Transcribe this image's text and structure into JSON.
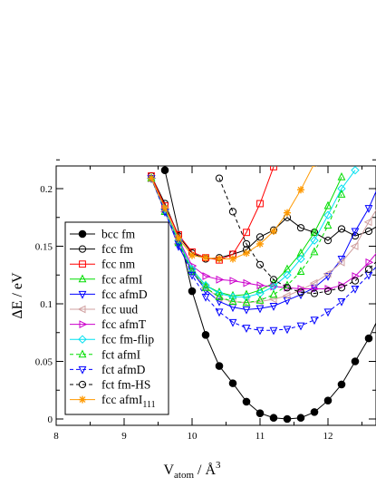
{
  "chart_data": {
    "type": "line",
    "xlabel": {
      "main": "V",
      "sub": "atom",
      "mid": " / Å",
      "sup": "3"
    },
    "ylabel": "ΔE / eV",
    "xlim": [
      8,
      12.8
    ],
    "ylim": [
      -0.015,
      0.225
    ],
    "xticks": [
      "8",
      "9",
      "10",
      "11",
      "12"
    ],
    "yticks": [
      "0",
      "0.05",
      "0.1",
      "0.15",
      "0.2"
    ],
    "legend_position": "lower-left",
    "series": [
      {
        "name": "bcc fm",
        "color": "#000000",
        "marker": "circle-filled",
        "dash": "solid",
        "x": [
          9.6,
          10.0,
          10.2,
          10.4,
          10.6,
          10.8,
          11.0,
          11.2,
          11.4,
          11.6,
          11.8,
          12.0,
          12.2,
          12.4,
          12.6,
          12.8
        ],
        "y": [
          0.216,
          0.111,
          0.073,
          0.046,
          0.031,
          0.015,
          0.005,
          0.001,
          0.0,
          0.001,
          0.006,
          0.016,
          0.03,
          0.05,
          0.07,
          0.095
        ]
      },
      {
        "name": "fcc fm",
        "color": "#000000",
        "marker": "circle-open",
        "dash": "solid",
        "x": [
          9.4,
          9.6,
          9.8,
          10.0,
          10.2,
          10.4,
          10.6,
          10.8,
          11.0,
          11.2,
          11.4,
          11.6,
          11.8,
          12.0,
          12.2,
          12.4,
          12.6,
          12.8
        ],
        "y": [
          0.211,
          0.187,
          0.159,
          0.144,
          0.139,
          0.14,
          0.143,
          0.147,
          0.158,
          0.164,
          0.175,
          0.166,
          0.162,
          0.155,
          0.165,
          0.159,
          0.163,
          0.17
        ]
      },
      {
        "name": "fcc nm",
        "color": "#ff0000",
        "marker": "square-open",
        "dash": "solid",
        "x": [
          9.4,
          9.6,
          9.8,
          10.0,
          10.2,
          10.4,
          10.6,
          10.8,
          11.0,
          11.2
        ],
        "y": [
          0.211,
          0.185,
          0.16,
          0.145,
          0.14,
          0.138,
          0.143,
          0.162,
          0.187,
          0.219
        ]
      },
      {
        "name": "fcc afmI",
        "subscript": "",
        "color": "#00dd00",
        "marker": "triangle-up-open",
        "dash": "solid",
        "x": [
          9.4,
          9.6,
          9.8,
          10.0,
          10.2,
          10.4,
          10.6,
          10.8,
          11.0,
          11.2,
          11.4,
          11.6,
          11.8,
          12.0,
          12.2
        ],
        "y": [
          0.209,
          0.18,
          0.154,
          0.13,
          0.116,
          0.11,
          0.107,
          0.108,
          0.112,
          0.118,
          0.13,
          0.144,
          0.162,
          0.185,
          0.21
        ]
      },
      {
        "name": "fcc afmD",
        "color": "#0000ff",
        "marker": "triangle-down-open",
        "dash": "solid",
        "x": [
          9.4,
          9.6,
          9.8,
          10.0,
          10.2,
          10.4,
          10.6,
          10.8,
          11.0,
          11.2,
          11.4,
          11.6,
          11.8,
          12.0,
          12.2,
          12.4,
          12.6,
          12.8
        ],
        "y": [
          0.209,
          0.18,
          0.15,
          0.128,
          0.112,
          0.102,
          0.097,
          0.095,
          0.096,
          0.098,
          0.103,
          0.108,
          0.114,
          0.124,
          0.139,
          0.163,
          0.183,
          0.21
        ]
      },
      {
        "name": "fcc uud",
        "color": "#d0a0a0",
        "marker": "triangle-left-open",
        "dash": "solid",
        "x": [
          9.4,
          9.6,
          9.8,
          10.0,
          10.2,
          10.4,
          10.6,
          10.8,
          11.0,
          11.2,
          11.4,
          11.6,
          11.8,
          12.0,
          12.2,
          12.4,
          12.6,
          12.8
        ],
        "y": [
          0.209,
          0.18,
          0.152,
          0.129,
          0.114,
          0.105,
          0.102,
          0.101,
          0.102,
          0.104,
          0.107,
          0.112,
          0.118,
          0.126,
          0.136,
          0.15,
          0.171,
          0.19
        ]
      },
      {
        "name": "fcc afmT",
        "color": "#cc00cc",
        "marker": "triangle-right-open",
        "dash": "solid",
        "x": [
          9.4,
          9.6,
          9.8,
          10.0,
          10.2,
          10.4,
          10.6,
          10.8,
          11.0,
          11.2,
          11.4,
          11.6,
          11.8,
          12.0,
          12.2,
          12.4,
          12.6,
          12.8
        ],
        "y": [
          0.209,
          0.182,
          0.156,
          0.133,
          0.124,
          0.121,
          0.12,
          0.118,
          0.116,
          0.115,
          0.114,
          0.113,
          0.113,
          0.113,
          0.116,
          0.124,
          0.136,
          0.15
        ]
      },
      {
        "name": "fcc fm-flip",
        "color": "#00e0f0",
        "marker": "diamond-open",
        "dash": "solid",
        "x": [
          9.4,
          9.6,
          9.8,
          10.0,
          10.2,
          10.4,
          10.6,
          10.8,
          11.0,
          11.2,
          11.4,
          11.6,
          11.8,
          12.0,
          12.2,
          12.4
        ],
        "y": [
          0.209,
          0.182,
          0.155,
          0.13,
          0.116,
          0.109,
          0.106,
          0.106,
          0.109,
          0.115,
          0.125,
          0.139,
          0.155,
          0.177,
          0.2,
          0.216
        ]
      },
      {
        "name": "fct afmI",
        "color": "#00dd00",
        "marker": "triangle-up-open",
        "dash": "dashed",
        "x": [
          9.4,
          9.6,
          9.8,
          10.0,
          10.2,
          10.4,
          10.6,
          10.8,
          11.0,
          11.2,
          11.4,
          11.6,
          11.8,
          12.0,
          12.2
        ],
        "y": [
          0.209,
          0.18,
          0.153,
          0.128,
          0.114,
          0.106,
          0.102,
          0.101,
          0.103,
          0.108,
          0.116,
          0.128,
          0.145,
          0.168,
          0.195
        ]
      },
      {
        "name": "fct afmD",
        "color": "#0000ff",
        "marker": "triangle-down-open",
        "dash": "dashed",
        "x": [
          9.4,
          9.6,
          9.8,
          10.0,
          10.2,
          10.4,
          10.6,
          10.8,
          11.0,
          11.2,
          11.4,
          11.6,
          11.8,
          12.0,
          12.2,
          12.4,
          12.6,
          12.8
        ],
        "y": [
          0.209,
          0.18,
          0.152,
          0.125,
          0.106,
          0.093,
          0.084,
          0.079,
          0.077,
          0.077,
          0.078,
          0.081,
          0.086,
          0.093,
          0.102,
          0.113,
          0.125,
          0.138
        ]
      },
      {
        "name": "fct fm-HS",
        "color": "#000000",
        "marker": "circle-open",
        "dash": "dashed",
        "x": [
          10.4,
          10.6,
          10.8,
          11.0,
          11.2,
          11.4,
          11.6,
          11.8,
          12.0,
          12.2,
          12.4,
          12.6,
          12.8
        ],
        "y": [
          0.209,
          0.18,
          0.152,
          0.134,
          0.121,
          0.114,
          0.11,
          0.109,
          0.111,
          0.114,
          0.12,
          0.13,
          0.142
        ]
      },
      {
        "name": "fcc afmI",
        "subscript": "111",
        "color": "#ff9900",
        "marker": "star",
        "dash": "solid",
        "x": [
          9.4,
          9.6,
          9.8,
          10.0,
          10.2,
          10.4,
          10.6,
          10.8,
          11.0,
          11.2,
          11.4,
          11.6,
          11.8
        ],
        "y": [
          0.209,
          0.183,
          0.157,
          0.142,
          0.14,
          0.139,
          0.139,
          0.144,
          0.152,
          0.163,
          0.179,
          0.199,
          0.222
        ]
      }
    ]
  }
}
